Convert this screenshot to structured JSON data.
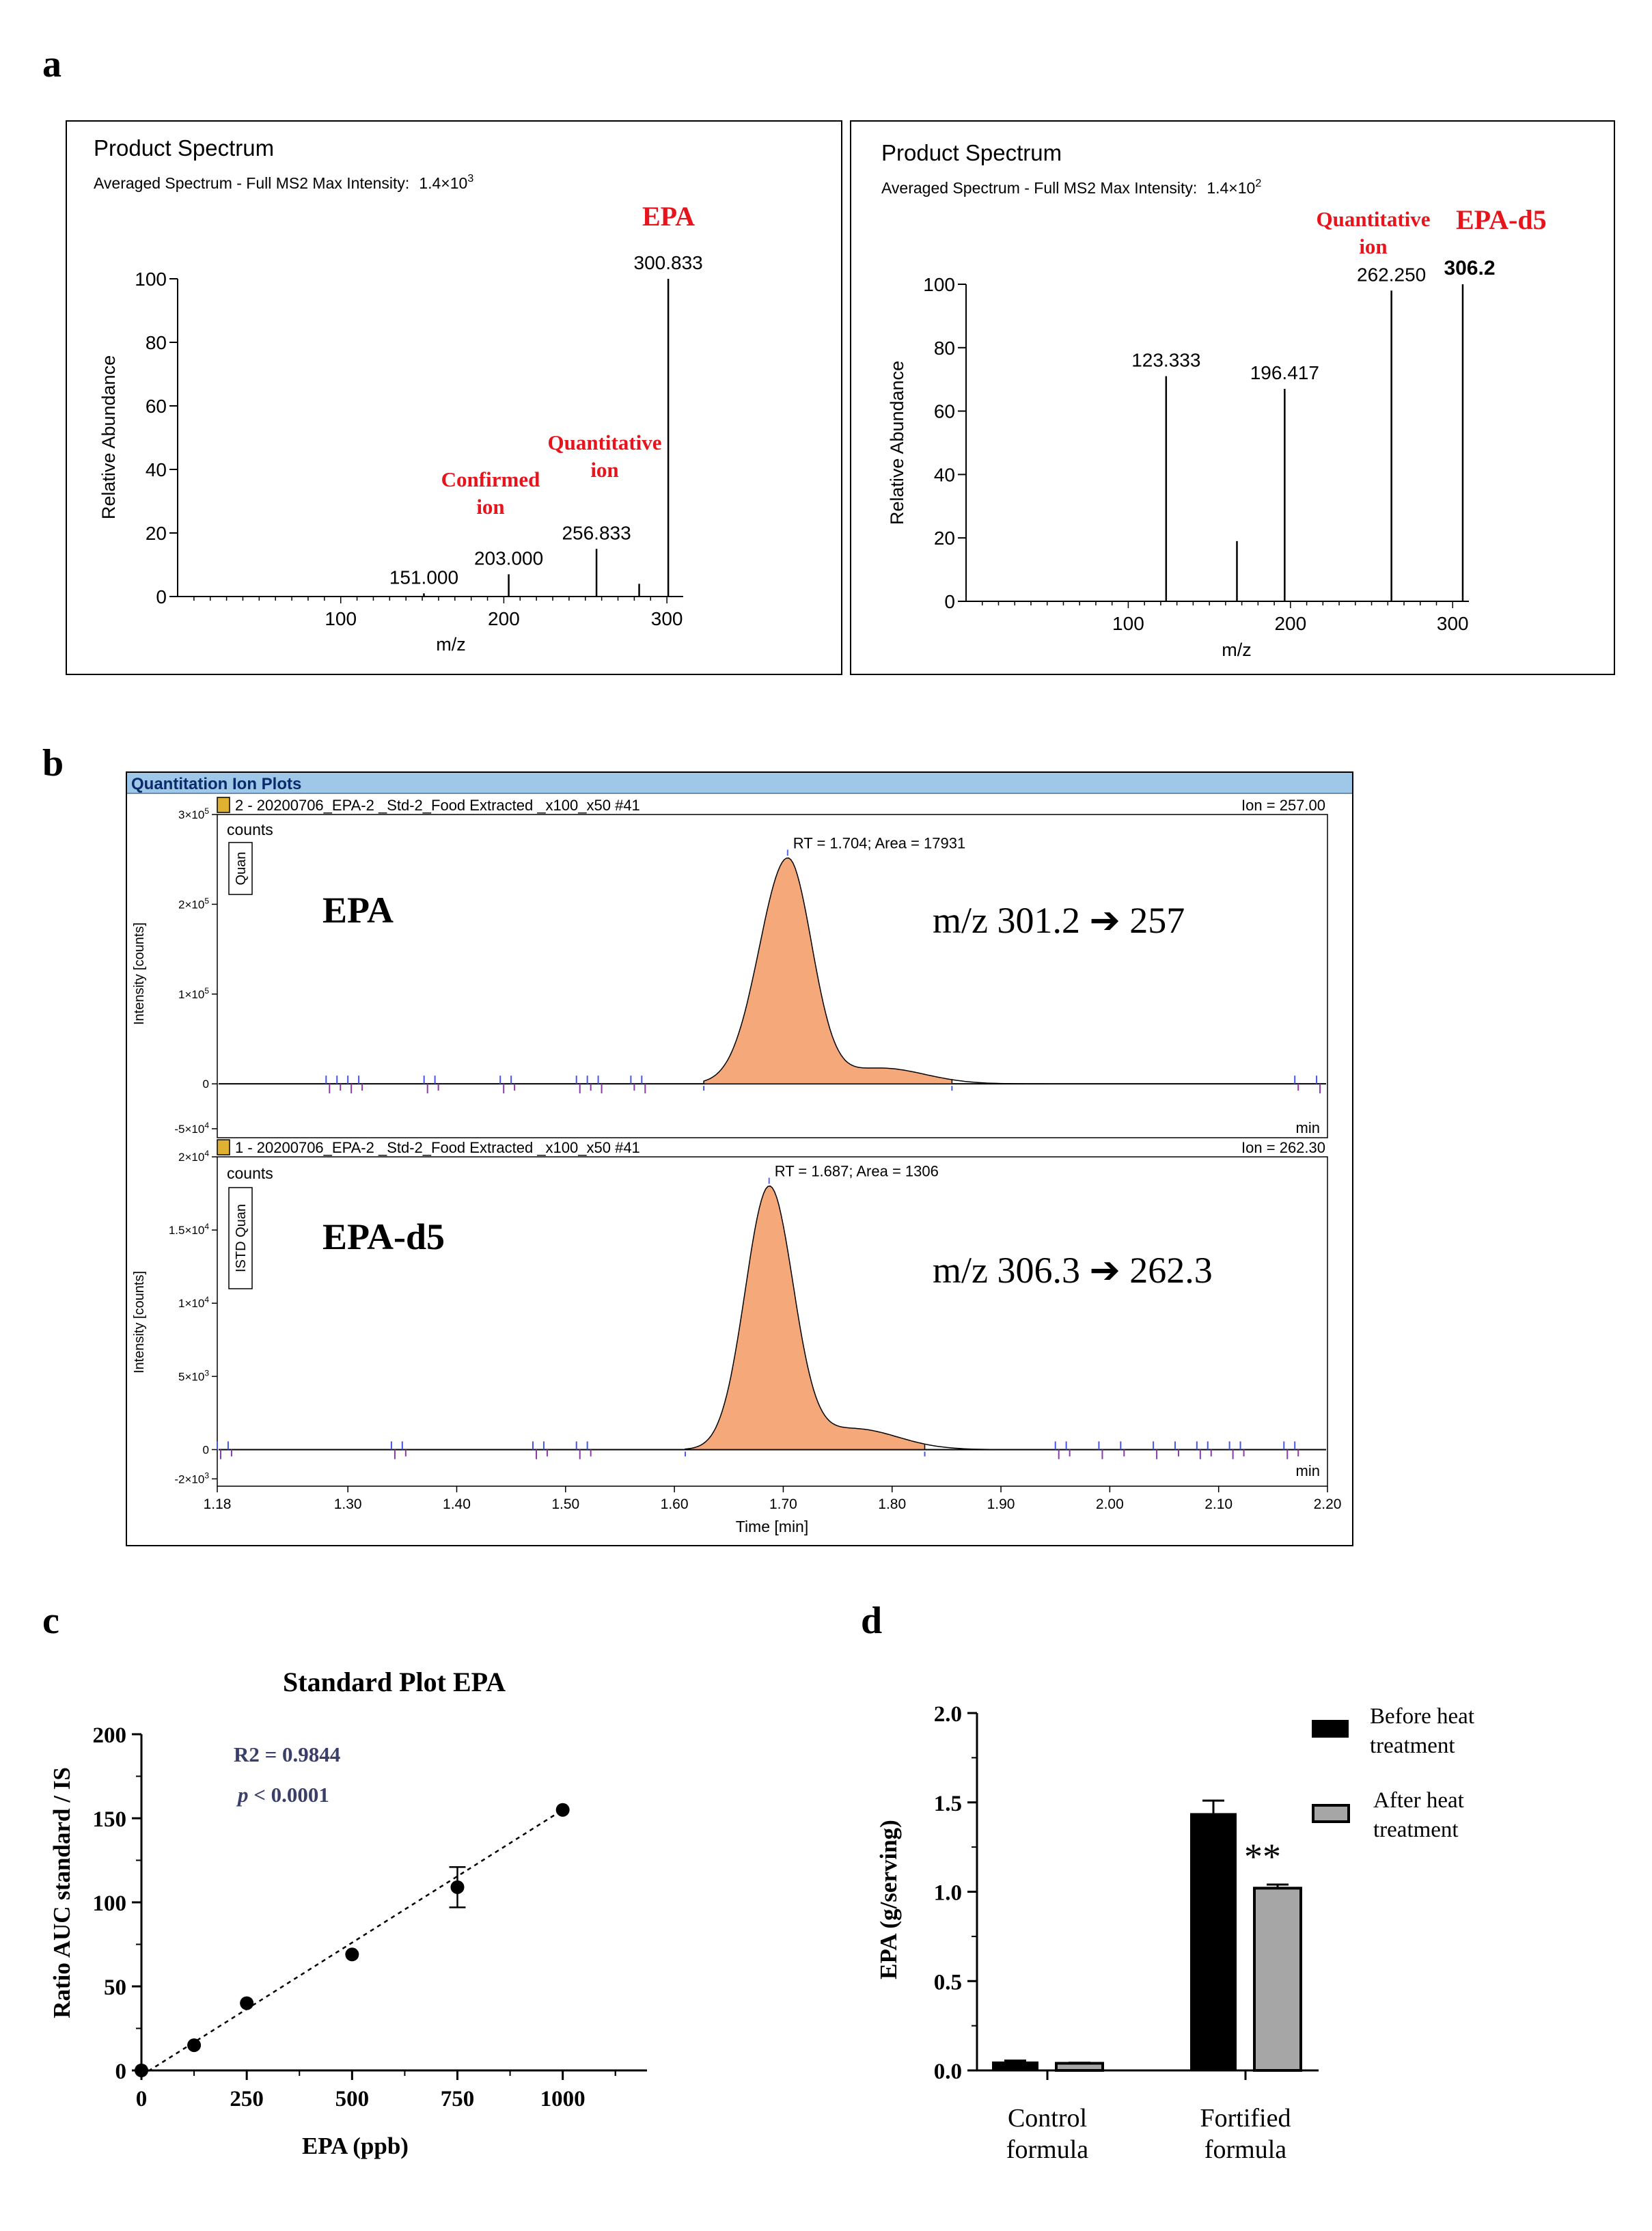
{
  "panels": {
    "a": "a",
    "b": "b",
    "c": "c",
    "d": "d"
  },
  "chart_data": [
    {
      "type": "bar",
      "panel": "a",
      "title": "Product Spectrum",
      "subtitle": "Averaged Spectrum - Full MS2   Max Intensity:",
      "max_intensity": {
        "base": "1.4×10",
        "exp": "3"
      },
      "compound": "EPA",
      "xlabel": "m/z",
      "ylabel": "Relative Abundance",
      "xlim": [
        0,
        310
      ],
      "ylim": [
        0,
        100
      ],
      "xticks": [
        100,
        200,
        300
      ],
      "yticks": [
        0,
        20,
        40,
        60,
        80,
        100
      ],
      "peaks": [
        {
          "mz": 151.0,
          "abundance": 1,
          "label": "151.000"
        },
        {
          "mz": 203.0,
          "abundance": 7,
          "label": "203.000"
        },
        {
          "mz": 256.833,
          "abundance": 15,
          "label": "256.833"
        },
        {
          "mz": 283.0,
          "abundance": 4,
          "label": ""
        },
        {
          "mz": 300.833,
          "abundance": 100,
          "label": "300.833"
        }
      ],
      "annotations": [
        {
          "text": "Confirmed",
          "text2": "ion",
          "mz": 203.0
        },
        {
          "text": "Quantitative",
          "text2": "ion",
          "mz": 256.833
        }
      ]
    },
    {
      "type": "bar",
      "panel": "a",
      "title": "Product Spectrum",
      "subtitle": "Averaged Spectrum - Full MS2   Max Intensity:",
      "max_intensity": {
        "base": "1.4×10",
        "exp": "2"
      },
      "compound": "EPA-d5",
      "xlabel": "m/z",
      "ylabel": "Relative Abundance",
      "xlim": [
        0,
        310
      ],
      "ylim": [
        0,
        100
      ],
      "xticks": [
        100,
        200,
        300
      ],
      "yticks": [
        0,
        20,
        40,
        60,
        80,
        100
      ],
      "peaks": [
        {
          "mz": 123.333,
          "abundance": 71,
          "label": "123.333"
        },
        {
          "mz": 167.0,
          "abundance": 19,
          "label": ""
        },
        {
          "mz": 196.417,
          "abundance": 67,
          "label": "196.417"
        },
        {
          "mz": 262.25,
          "abundance": 98,
          "label": "262.250"
        },
        {
          "mz": 306.2,
          "abundance": 100,
          "label": "306.2"
        }
      ],
      "annotations": [
        {
          "text": "Quantitative",
          "text2": "ion",
          "mz": 262.25
        }
      ]
    },
    {
      "type": "area",
      "panel": "b",
      "window_title": "Quantitation Ion Plots",
      "xlabel": "Time [min]",
      "xlim": [
        1.18,
        2.2
      ],
      "xticks": [
        "1.18",
        "1.30",
        "1.40",
        "1.50",
        "1.60",
        "1.70",
        "1.80",
        "1.90",
        "2.00",
        "2.10",
        "2.20"
      ],
      "xtick_values": [
        1.18,
        1.3,
        1.4,
        1.5,
        1.6,
        1.7,
        1.8,
        1.9,
        2.0,
        2.1,
        2.2
      ],
      "traces": [
        {
          "header": "2 - 20200706_EPA-2 _Std-2_Food Extracted _x100_x50 #41",
          "ion": "Ion = 257.00",
          "units": "counts",
          "tag": "Quan",
          "ylabel": "Intensity [counts]",
          "compound": "EPA",
          "transition": "m/z 301.2 ➔ 257",
          "peak_label": "RT = 1.704; Area = 17931",
          "rt": 1.704,
          "area": 17931,
          "peak_height": 250000,
          "ylim": [
            -60000,
            300000
          ],
          "ytick_values": [
            300000,
            200000,
            100000,
            0,
            -50000
          ],
          "yticks": [
            {
              "base": "3×10",
              "exp": "5"
            },
            {
              "base": "2×10",
              "exp": "5"
            },
            {
              "base": "1×10",
              "exp": "5"
            },
            {
              "base": "0",
              "exp": ""
            },
            {
              "base": "-5×10",
              "exp": "4"
            }
          ],
          "peak_range": [
            1.627,
            1.855
          ],
          "min_label": "min"
        },
        {
          "header": "1 - 20200706_EPA-2 _Std-2_Food Extracted _x100_x50 #41",
          "ion": "Ion = 262.30",
          "units": "counts",
          "tag": "ISTD Quan",
          "ylabel": "Intensity [counts]",
          "compound": "EPA-d5",
          "transition": "m/z 306.3 ➔ 262.3",
          "peak_label": "RT = 1.687; Area = 1306",
          "rt": 1.687,
          "area": 1306,
          "peak_height": 17800,
          "ylim": [
            -2500,
            20000
          ],
          "ytick_values": [
            20000,
            15000,
            10000,
            5000,
            0,
            -2000
          ],
          "yticks": [
            {
              "base": "2×10",
              "exp": "4"
            },
            {
              "base": "1.5×10",
              "exp": "4"
            },
            {
              "base": "1×10",
              "exp": "4"
            },
            {
              "base": "5×10",
              "exp": "3"
            },
            {
              "base": "0",
              "exp": ""
            },
            {
              "base": "-2×10",
              "exp": "3"
            }
          ],
          "peak_range": [
            1.61,
            1.83
          ],
          "min_label": "min"
        }
      ]
    },
    {
      "type": "scatter",
      "panel": "c",
      "title": "Standard Plot EPA",
      "xlabel": "EPA (ppb)",
      "ylabel": "Ratio AUC standard / IS",
      "xlim": [
        0,
        1200
      ],
      "ylim": [
        0,
        200
      ],
      "xticks": [
        0,
        250,
        500,
        750,
        1000
      ],
      "yticks": [
        0,
        50,
        100,
        150,
        200
      ],
      "x": [
        0,
        125,
        250,
        500,
        750,
        1000
      ],
      "y": [
        0,
        15,
        40,
        69,
        109,
        155
      ],
      "error": [
        0,
        0,
        0,
        0,
        12,
        0
      ],
      "fit": {
        "x": [
          0,
          1000
        ],
        "y": [
          -3,
          155
        ]
      },
      "r2_label": "R2 = 0.9844",
      "p_label_italic": "p",
      "p_label": " < 0.0001"
    },
    {
      "type": "bar",
      "panel": "d",
      "ylabel": "EPA (g/serving)",
      "ylim": [
        0,
        2.0
      ],
      "yticks": [
        "0.0",
        "0.5",
        "1.0",
        "1.5",
        "2.0"
      ],
      "ytick_values": [
        0,
        0.5,
        1.0,
        1.5,
        2.0
      ],
      "categories": [
        {
          "line1": "Control",
          "line2": "formula"
        },
        {
          "line1": "Fortified",
          "line2": "formula"
        }
      ],
      "series": [
        {
          "name": "Before heat treatment",
          "legend_line1": "Before heat",
          "legend_line2": "treatment",
          "color": "#000000",
          "values": [
            0.05,
            1.44
          ],
          "errors": [
            0.005,
            0.07
          ]
        },
        {
          "name": "After heat treatment",
          "legend_line1": "After heat",
          "legend_line2": "treatment",
          "color": "#a6a6a6",
          "values": [
            0.04,
            1.02
          ],
          "errors": [
            0.003,
            0.02
          ]
        }
      ],
      "significance": "**"
    }
  ],
  "colors": {
    "red": "#e8141c",
    "peak_fill": "#f5a97a",
    "titlebar": "#9fc7e8",
    "bar_after": "#a6a6a6"
  }
}
